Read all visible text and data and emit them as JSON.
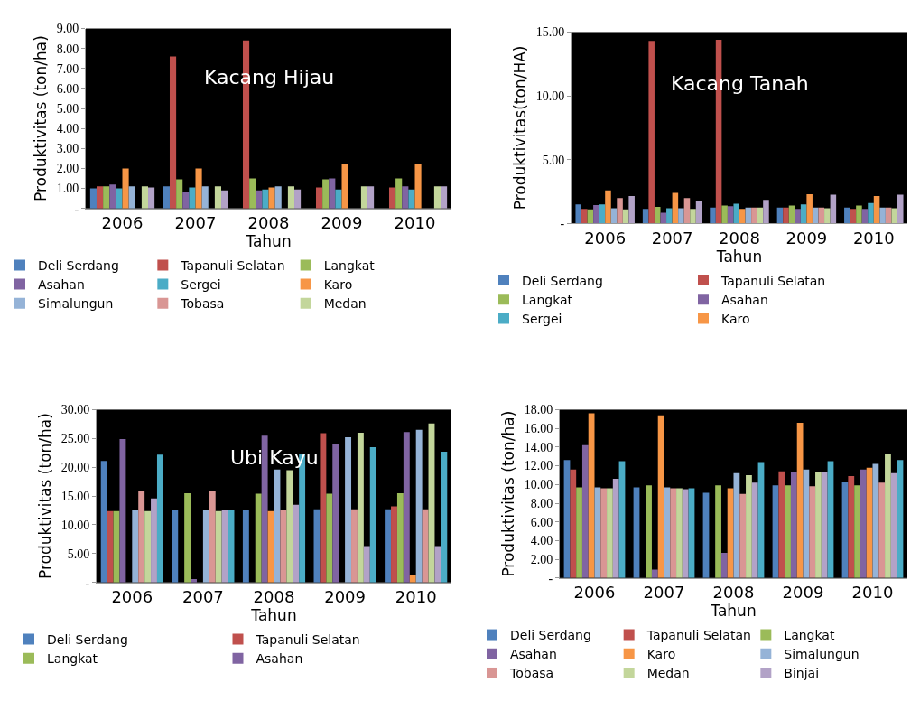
{
  "chart_data": [
    {
      "type": "bar",
      "title": "Kacang Hijau",
      "xlabel": "Tahun",
      "ylabel": "Produktivitas (ton/ha)",
      "legend": "bottom",
      "categories": [
        "2006",
        "2007",
        "2008",
        "2009",
        "2010"
      ],
      "ylim": [
        0,
        9
      ],
      "yticks": [
        {
          "value": 0,
          "label": "-"
        },
        {
          "value": 1,
          "label": "1.00"
        },
        {
          "value": 2,
          "label": "2.00"
        },
        {
          "value": 3,
          "label": "3.00"
        },
        {
          "value": 4,
          "label": "4.00"
        },
        {
          "value": 5,
          "label": "5.00"
        },
        {
          "value": 6,
          "label": "6.00"
        },
        {
          "value": 7,
          "label": "7.00"
        },
        {
          "value": 8,
          "label": "8.00"
        },
        {
          "value": 9,
          "label": "9.00"
        }
      ],
      "series": [
        {
          "name": "Deli Serdang",
          "color": "#4f81bd",
          "values": [
            1.0,
            1.1,
            null,
            null,
            null
          ]
        },
        {
          "name": "Tapanuli Selatan",
          "color": "#c0504d",
          "values": [
            1.1,
            7.6,
            8.4,
            1.05,
            1.05
          ]
        },
        {
          "name": "Langkat",
          "color": "#9bbb59",
          "values": [
            1.1,
            1.45,
            1.5,
            1.45,
            1.5
          ]
        },
        {
          "name": "Asahan",
          "color": "#8064a2",
          "values": [
            1.2,
            0.85,
            0.9,
            1.5,
            1.1
          ]
        },
        {
          "name": "Sergei",
          "color": "#4bacc6",
          "values": [
            1.0,
            1.05,
            0.95,
            0.95,
            0.95
          ]
        },
        {
          "name": "Karo",
          "color": "#f79646",
          "values": [
            2.0,
            2.0,
            1.05,
            2.2,
            2.2
          ]
        },
        {
          "name": "Simalungun",
          "color": "#95b3d7",
          "values": [
            1.1,
            1.1,
            1.1,
            null,
            null
          ]
        },
        {
          "name": "Tobasa",
          "color": "#d99694",
          "values": [
            null,
            null,
            null,
            null,
            null
          ]
        },
        {
          "name": "Medan",
          "color": "#c3d69b",
          "values": [
            1.1,
            1.1,
            1.1,
            1.1,
            1.1
          ]
        },
        {
          "color": "#b2a2c7",
          "values": [
            1.05,
            0.9,
            0.95,
            1.1,
            1.1
          ]
        }
      ]
    },
    {
      "type": "bar",
      "title": "Kacang Tanah",
      "xlabel": "Tahun",
      "ylabel": "Produktivitas(ton/HA)",
      "legend": "bottom",
      "categories": [
        "2006",
        "2007",
        "2008",
        "2009",
        "2010"
      ],
      "ylim": [
        0,
        15
      ],
      "yticks": [
        {
          "value": 0,
          "label": "-"
        },
        {
          "value": 5,
          "label": "5.00"
        },
        {
          "value": 10,
          "label": "10.00"
        },
        {
          "value": 15,
          "label": "15.00"
        }
      ],
      "series": [
        {
          "name": "Deli Serdang",
          "color": "#4f81bd",
          "values": [
            1.5,
            1.15,
            1.25,
            1.25,
            1.25
          ]
        },
        {
          "name": "Tapanuli Selatan",
          "color": "#c0504d",
          "values": [
            1.15,
            14.3,
            14.4,
            1.25,
            1.15
          ]
        },
        {
          "name": "Langkat",
          "color": "#9bbb59",
          "values": [
            1.1,
            1.3,
            1.4,
            1.4,
            1.4
          ]
        },
        {
          "name": "Asahan",
          "color": "#8064a2",
          "values": [
            1.45,
            0.85,
            1.35,
            1.15,
            1.15
          ]
        },
        {
          "name": "Sergei",
          "color": "#4bacc6",
          "values": [
            1.5,
            1.2,
            1.55,
            1.5,
            1.6
          ]
        },
        {
          "name": "Karo",
          "color": "#f79646",
          "values": [
            2.6,
            2.4,
            1.15,
            2.3,
            2.15
          ]
        },
        {
          "color": "#95b3d7",
          "values": [
            1.2,
            1.2,
            1.25,
            1.25,
            1.25
          ]
        },
        {
          "color": "#d99694",
          "values": [
            2.0,
            2.0,
            1.25,
            1.25,
            1.25
          ]
        },
        {
          "color": "#c3d69b",
          "values": [
            1.1,
            1.15,
            1.25,
            1.2,
            1.2
          ]
        },
        {
          "color": "#b2a2c7",
          "values": [
            2.15,
            1.8,
            1.85,
            2.25,
            2.25
          ]
        }
      ]
    },
    {
      "type": "bar",
      "title": "Ubi Kayu",
      "xlabel": "Tahun",
      "ylabel": "Produktivitas (ton/ha)",
      "legend": "bottom",
      "categories": [
        "2006",
        "2007",
        "2008",
        "2009",
        "2010"
      ],
      "ylim": [
        0,
        30
      ],
      "yticks": [
        {
          "value": 0,
          "label": "-"
        },
        {
          "value": 5,
          "label": "5.00"
        },
        {
          "value": 10,
          "label": "10.00"
        },
        {
          "value": 15,
          "label": "15.00"
        },
        {
          "value": 20,
          "label": "20.00"
        },
        {
          "value": 25,
          "label": "25.00"
        },
        {
          "value": 30,
          "label": "30.00"
        }
      ],
      "series": [
        {
          "name": "Deli Serdang",
          "color": "#4f81bd",
          "values": [
            21.1,
            12.6,
            12.6,
            12.7,
            12.7
          ]
        },
        {
          "name": "Tapanuli Selatan",
          "color": "#c0504d",
          "values": [
            12.4,
            null,
            null,
            25.9,
            13.2
          ]
        },
        {
          "name": "Langkat",
          "color": "#9bbb59",
          "values": [
            12.4,
            15.5,
            15.4,
            15.4,
            15.5
          ]
        },
        {
          "name": "Asahan",
          "color": "#8064a2",
          "values": [
            24.9,
            0.6,
            25.5,
            24.1,
            26.1
          ]
        },
        {
          "color": "#f79646",
          "values": [
            null,
            null,
            12.4,
            null,
            1.3
          ]
        },
        {
          "color": "#95b3d7",
          "values": [
            12.6,
            12.6,
            19.6,
            25.2,
            26.5
          ]
        },
        {
          "color": "#d99694",
          "values": [
            15.8,
            15.8,
            12.6,
            12.7,
            12.7
          ]
        },
        {
          "color": "#c3d69b",
          "values": [
            12.4,
            12.4,
            19.5,
            26.0,
            27.6
          ]
        },
        {
          "color": "#b2a2c7",
          "values": [
            14.6,
            12.6,
            13.5,
            6.3,
            6.3
          ]
        },
        {
          "color": "#4bacc6",
          "values": [
            22.2,
            12.6,
            22.4,
            23.5,
            22.7
          ]
        }
      ]
    },
    {
      "type": "bar",
      "xlabel": "Tahun",
      "ylabel": "Produktivitas (ton/ha)",
      "legend": "bottom",
      "categories": [
        "2006",
        "2007",
        "2008",
        "2009",
        "2010"
      ],
      "ylim": [
        0,
        18
      ],
      "yticks": [
        {
          "value": 0,
          "label": "-"
        },
        {
          "value": 2,
          "label": "2.00"
        },
        {
          "value": 4,
          "label": "4.00"
        },
        {
          "value": 6,
          "label": "6.00"
        },
        {
          "value": 8,
          "label": "8.00"
        },
        {
          "value": 10,
          "label": "10.00"
        },
        {
          "value": 12,
          "label": "12.00"
        },
        {
          "value": 14,
          "label": "14.00"
        },
        {
          "value": 16,
          "label": "16.00"
        },
        {
          "value": 18,
          "label": "18.00"
        }
      ],
      "series": [
        {
          "name": "Deli Serdang",
          "color": "#4f81bd",
          "values": [
            12.6,
            9.7,
            9.1,
            9.9,
            10.3
          ]
        },
        {
          "name": "Tapanuli Selatan",
          "color": "#c0504d",
          "values": [
            11.6,
            null,
            null,
            11.4,
            10.9
          ]
        },
        {
          "name": "Langkat",
          "color": "#9bbb59",
          "values": [
            9.7,
            9.9,
            9.9,
            9.9,
            9.9
          ]
        },
        {
          "name": "Asahan",
          "color": "#8064a2",
          "values": [
            14.2,
            0.9,
            2.7,
            11.3,
            11.6
          ]
        },
        {
          "name": "Karo",
          "color": "#f79646",
          "values": [
            17.6,
            17.4,
            9.6,
            16.6,
            11.8
          ]
        },
        {
          "name": "Simalungun",
          "color": "#95b3d7",
          "values": [
            9.7,
            9.7,
            11.2,
            11.6,
            12.2
          ]
        },
        {
          "name": "Tobasa",
          "color": "#d99694",
          "values": [
            9.6,
            9.6,
            9.0,
            9.8,
            10.2
          ]
        },
        {
          "name": "Medan",
          "color": "#c3d69b",
          "values": [
            9.6,
            9.6,
            11.0,
            11.3,
            13.3
          ]
        },
        {
          "name": "Binjai",
          "color": "#b2a2c7",
          "values": [
            10.6,
            9.5,
            10.2,
            11.3,
            11.2
          ]
        },
        {
          "color": "#4bacc6",
          "values": [
            12.5,
            9.6,
            12.4,
            12.5,
            12.6
          ]
        }
      ]
    }
  ]
}
